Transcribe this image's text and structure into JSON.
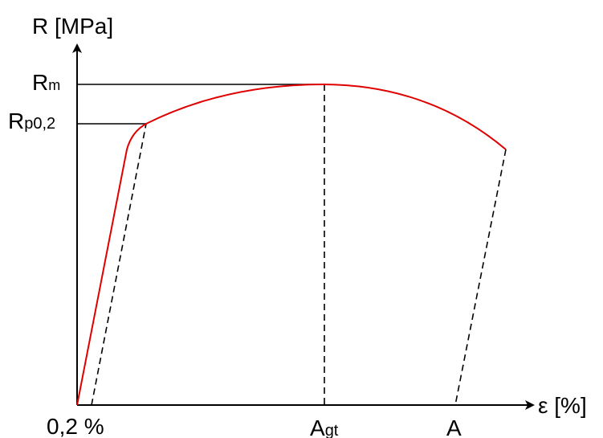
{
  "axes": {
    "y_label": "R [MPa]",
    "x_label": "ε [%]"
  },
  "y_marks": {
    "rm_main": "R",
    "rm_sub": "m",
    "rp_main": "R",
    "rp_sub": "p0,2"
  },
  "x_marks": {
    "offset": "0,2 %",
    "agt_main": "A",
    "agt_sub": "gt",
    "a": "A"
  },
  "colors": {
    "curve": "#e00000",
    "lines": "#000000"
  }
}
